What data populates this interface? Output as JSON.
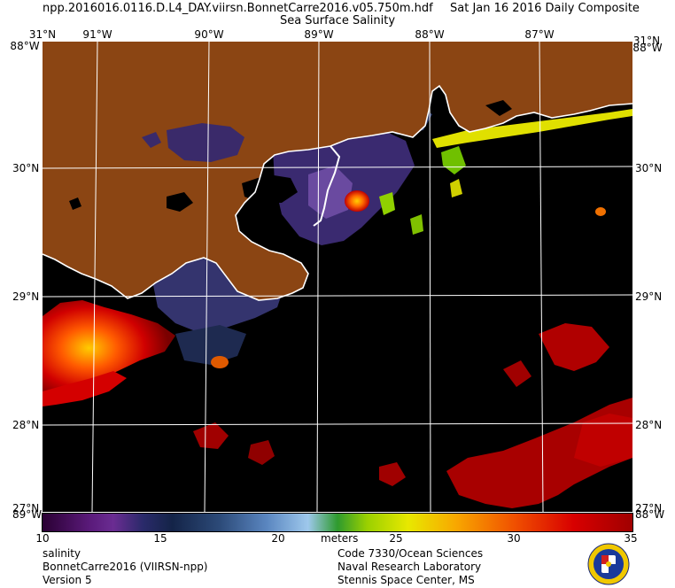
{
  "header": {
    "file_name": "npp.2016016.0116.D.L4_DAY.viirsn.BonnetCarre2016.v05.750m.hdf",
    "composite_label": "Sat Jan 16 2016 Daily Composite",
    "product_title": "Sea Surface Salinity"
  },
  "map": {
    "lon_labels": [
      "91°W",
      "90°W",
      "89°W",
      "88°W",
      "87°W"
    ],
    "lat_labels": [
      "31°N",
      "30°N",
      "29°N",
      "28°N",
      "27°N"
    ],
    "corner_labels": {
      "top_left_lat": "31°N",
      "top_left_lon": "88°W",
      "top_right_lat": "31°N",
      "top_right_lon": "88°W",
      "bottom_left_lat": "27°N",
      "bottom_left_lon": "89°W",
      "bottom_right_lat": "27°N",
      "bottom_right_lon": "88°W"
    },
    "colors": {
      "land": "#8b4513",
      "water_nodata": "#000000",
      "gridline": "#ffffff",
      "coastline": "#ffffff"
    }
  },
  "colorbar": {
    "ticks": [
      "10",
      "15",
      "20",
      "25",
      "30",
      "35"
    ],
    "min": 10,
    "max": 35,
    "units": "meters"
  },
  "footer": {
    "left": [
      "salinity",
      "BonnetCarre2016 (VIIRSN-npp)",
      "Version 5"
    ],
    "right": [
      "Code 7330/Ocean Sciences",
      "Naval Research Laboratory",
      "Stennis Space Center, MS"
    ]
  },
  "logo": {
    "name": "naval-research-laboratory-seal"
  }
}
